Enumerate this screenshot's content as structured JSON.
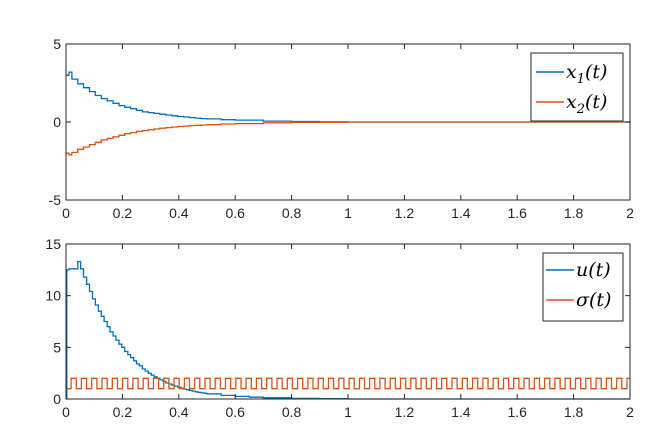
{
  "colors": {
    "series1": "#0072BD",
    "series2": "#D95319",
    "axis": "#262626",
    "background": "#ffffff"
  },
  "chart_data": [
    {
      "type": "line",
      "title": "",
      "xlabel": "",
      "ylabel": "",
      "xlim": [
        0,
        2
      ],
      "ylim": [
        -5,
        5
      ],
      "x_ticks": [
        "0",
        "0.2",
        "0.4",
        "0.6",
        "0.8",
        "1",
        "1.2",
        "1.4",
        "1.6",
        "1.8",
        "2"
      ],
      "y_ticks": [
        "-5",
        "0",
        "5"
      ],
      "grid": false,
      "legend_position": "top-right",
      "series": [
        {
          "name": "x1(t)",
          "legend_base": "x",
          "legend_sub": "1",
          "legend_tail": "(t)",
          "color": "#0072BD",
          "x": [
            0.0,
            0.0105,
            0.021,
            0.042,
            0.062,
            0.0835,
            0.104,
            0.125,
            0.146,
            0.167,
            0.188,
            0.208,
            0.229,
            0.25,
            0.271,
            0.292,
            0.3125,
            0.333,
            0.354,
            0.375,
            0.396,
            0.417,
            0.4375,
            0.458,
            0.479,
            0.5,
            0.55,
            0.6,
            0.7,
            0.8,
            0.9,
            1.0,
            1.2,
            1.5,
            2.0
          ],
          "values": [
            3.0,
            3.2,
            2.75,
            2.45,
            2.2,
            1.95,
            1.7,
            1.5,
            1.35,
            1.2,
            1.05,
            0.95,
            0.85,
            0.75,
            0.65,
            0.6,
            0.55,
            0.5,
            0.45,
            0.4,
            0.35,
            0.32,
            0.28,
            0.25,
            0.22,
            0.2,
            0.15,
            0.12,
            0.06,
            0.03,
            0.015,
            0.0,
            0.0,
            0.0,
            0.0
          ]
        },
        {
          "name": "x2(t)",
          "legend_base": "x",
          "legend_sub": "2",
          "legend_tail": "(t)",
          "color": "#D95319",
          "x": [
            0.0,
            0.0105,
            0.021,
            0.042,
            0.062,
            0.0835,
            0.104,
            0.125,
            0.146,
            0.167,
            0.188,
            0.208,
            0.229,
            0.25,
            0.271,
            0.292,
            0.3125,
            0.333,
            0.354,
            0.375,
            0.396,
            0.417,
            0.4375,
            0.458,
            0.479,
            0.5,
            0.55,
            0.6,
            0.7,
            0.8,
            0.9,
            1.0,
            1.2,
            1.5,
            2.0
          ],
          "values": [
            -2.0,
            -2.1,
            -1.95,
            -1.75,
            -1.6,
            -1.45,
            -1.3,
            -1.15,
            -1.05,
            -0.95,
            -0.85,
            -0.75,
            -0.68,
            -0.6,
            -0.55,
            -0.5,
            -0.45,
            -0.4,
            -0.36,
            -0.32,
            -0.29,
            -0.26,
            -0.23,
            -0.21,
            -0.19,
            -0.17,
            -0.13,
            -0.1,
            -0.05,
            -0.025,
            -0.01,
            0.0,
            0.0,
            0.0,
            0.0
          ]
        }
      ]
    },
    {
      "type": "line",
      "title": "",
      "xlabel": "",
      "ylabel": "",
      "xlim": [
        0,
        2
      ],
      "ylim": [
        0,
        15
      ],
      "x_ticks": [
        "0",
        "0.2",
        "0.4",
        "0.6",
        "0.8",
        "1",
        "1.2",
        "1.4",
        "1.6",
        "1.8",
        "2"
      ],
      "y_ticks": [
        "0",
        "5",
        "10",
        "15"
      ],
      "grid": false,
      "legend_position": "top-right",
      "series": [
        {
          "name": "u(t)",
          "legend_base": "u",
          "legend_sub": "",
          "legend_tail": "(t)",
          "color": "#0072BD",
          "x": [
            0.0,
            0.003,
            0.0105,
            0.021,
            0.031,
            0.042,
            0.052,
            0.062,
            0.073,
            0.0835,
            0.094,
            0.104,
            0.115,
            0.125,
            0.135,
            0.146,
            0.156,
            0.167,
            0.177,
            0.188,
            0.198,
            0.208,
            0.219,
            0.229,
            0.24,
            0.25,
            0.26,
            0.271,
            0.281,
            0.292,
            0.302,
            0.3125,
            0.323,
            0.333,
            0.344,
            0.354,
            0.365,
            0.375,
            0.385,
            0.396,
            0.406,
            0.417,
            0.427,
            0.4375,
            0.448,
            0.458,
            0.469,
            0.479,
            0.49,
            0.5,
            0.55,
            0.6,
            0.65,
            0.7,
            0.8,
            0.9,
            1.0,
            1.2,
            2.0
          ],
          "values": [
            0.0,
            12.5,
            12.6,
            12.6,
            12.6,
            13.3,
            12.6,
            11.8,
            11.1,
            10.4,
            9.7,
            9.1,
            8.5,
            8.0,
            7.5,
            7.0,
            6.5,
            6.1,
            5.7,
            5.3,
            5.0,
            4.6,
            4.3,
            4.0,
            3.7,
            3.4,
            3.2,
            2.9,
            2.7,
            2.5,
            2.3,
            2.15,
            2.0,
            1.85,
            1.7,
            1.55,
            1.45,
            1.35,
            1.25,
            1.15,
            1.05,
            0.97,
            0.9,
            0.82,
            0.76,
            0.7,
            0.64,
            0.59,
            0.55,
            0.5,
            0.35,
            0.25,
            0.17,
            0.12,
            0.06,
            0.03,
            0.0,
            0.0,
            0.0
          ]
        },
        {
          "name": "σ(t)",
          "legend_base": "σ",
          "legend_sub": "",
          "legend_tail": "(t)",
          "color": "#D95319",
          "x": [
            0.0,
            2.0
          ],
          "values": [
            1,
            2
          ],
          "pattern": "square wave switching between 1 and 2, period 0.0365 over 0–2"
        }
      ]
    }
  ]
}
